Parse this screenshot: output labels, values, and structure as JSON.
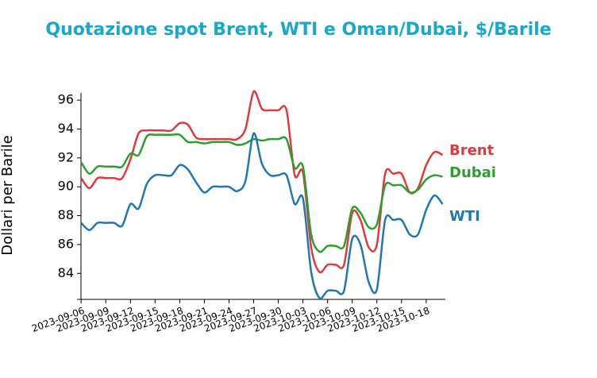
{
  "chart_data": {
    "type": "line",
    "title": "Quotazione spot Brent, WTI e Oman/Dubai, $/Barile",
    "y_label": "Dollari per Barile",
    "x": [
      "2023-09-06",
      "2023-09-07",
      "2023-09-08",
      "2023-09-09",
      "2023-09-10",
      "2023-09-11",
      "2023-09-12",
      "2023-09-13",
      "2023-09-14",
      "2023-09-15",
      "2023-09-16",
      "2023-09-17",
      "2023-09-18",
      "2023-09-19",
      "2023-09-20",
      "2023-09-21",
      "2023-09-22",
      "2023-09-23",
      "2023-09-24",
      "2023-09-25",
      "2023-09-26",
      "2023-09-27",
      "2023-09-28",
      "2023-09-29",
      "2023-09-30",
      "2023-10-01",
      "2023-10-02",
      "2023-10-03",
      "2023-10-04",
      "2023-10-05",
      "2023-10-06",
      "2023-10-07",
      "2023-10-08",
      "2023-10-09",
      "2023-10-10",
      "2023-10-11",
      "2023-10-12",
      "2023-10-13",
      "2023-10-14",
      "2023-10-15",
      "2023-10-16",
      "2023-10-17",
      "2023-10-18",
      "2023-10-19",
      "2023-10-20"
    ],
    "series": [
      {
        "name": "Brent",
        "color": "#e0393e",
        "values": [
          90.6,
          89.9,
          90.6,
          90.6,
          90.6,
          90.6,
          91.9,
          93.7,
          93.9,
          93.9,
          93.9,
          93.9,
          94.4,
          94.3,
          93.4,
          93.3,
          93.3,
          93.3,
          93.3,
          93.3,
          94.0,
          96.6,
          95.4,
          95.3,
          95.3,
          95.3,
          90.8,
          91.0,
          85.8,
          84.1,
          84.6,
          84.6,
          84.6,
          88.2,
          87.7,
          85.8,
          86.0,
          90.9,
          90.9,
          90.9,
          89.6,
          89.9,
          91.5,
          92.4,
          92.2
        ]
      },
      {
        "name": "Dubai",
        "color": "#2ca02c",
        "values": [
          91.7,
          90.9,
          91.4,
          91.4,
          91.4,
          91.4,
          92.3,
          92.2,
          93.5,
          93.6,
          93.6,
          93.6,
          93.6,
          93.1,
          93.1,
          93.0,
          93.1,
          93.1,
          93.1,
          92.9,
          93.0,
          93.3,
          93.2,
          93.3,
          93.3,
          93.3,
          91.3,
          91.4,
          86.7,
          85.5,
          85.9,
          85.9,
          85.9,
          88.5,
          88.2,
          87.2,
          87.4,
          90.1,
          90.1,
          90.1,
          89.6,
          89.8,
          90.5,
          90.8,
          90.7
        ]
      },
      {
        "name": "WTI",
        "color": "#1f77b4",
        "values": [
          87.5,
          87.0,
          87.5,
          87.5,
          87.5,
          87.3,
          88.8,
          88.5,
          90.2,
          90.8,
          90.8,
          90.8,
          91.5,
          91.2,
          90.3,
          89.6,
          90.0,
          90.0,
          90.0,
          89.7,
          90.4,
          93.7,
          91.6,
          90.8,
          90.8,
          90.8,
          88.8,
          89.2,
          84.1,
          82.3,
          82.8,
          82.8,
          82.8,
          86.4,
          86.0,
          83.4,
          82.9,
          87.7,
          87.7,
          87.7,
          86.7,
          86.7,
          88.4,
          89.4,
          88.8
        ]
      }
    ],
    "xlim": [
      "2023-09-05T12:00",
      "2023-10-20T08:00"
    ],
    "xticks": [
      "2023-09-06",
      "2023-09-09",
      "2023-09-12",
      "2023-09-15",
      "2023-09-18",
      "2023-09-21",
      "2023-09-24",
      "2023-09-27",
      "2023-09-30",
      "2023-10-03",
      "2023-10-06",
      "2023-10-09",
      "2023-10-12",
      "2023-10-15",
      "2023-10-18"
    ],
    "ylim": [
      82.2,
      96.5
    ],
    "yticks": [
      84,
      86,
      88,
      90,
      92,
      94,
      96
    ]
  }
}
